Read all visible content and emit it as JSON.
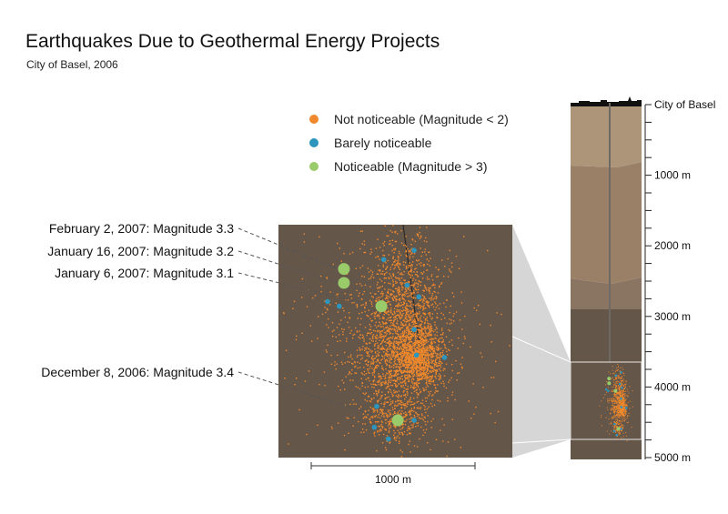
{
  "title": "Earthquakes Due to Geothermal Energy Projects",
  "subtitle": "City of Basel, 2006",
  "colors": {
    "not_noticeable": "#f0892c",
    "barely_noticeable": "#2e95bd",
    "noticeable": "#9acb6a",
    "rock_background": "#65564a"
  },
  "legend": [
    {
      "key": "not_noticeable",
      "label": "Not noticeable (Magnitude < 2)"
    },
    {
      "key": "barely_noticeable",
      "label": "Barely noticeable"
    },
    {
      "key": "noticeable",
      "label": "Noticeable (Magnitude > 3)"
    }
  ],
  "chart_data": {
    "type": "scatter",
    "title": "Earthquakes Due to Geothermal Energy Projects",
    "subtitle": "City of Basel, 2006",
    "surface_label": "City of Basel",
    "depth_axis": {
      "ticks": [
        {
          "value": 1000,
          "label": "1000 m"
        },
        {
          "value": 2000,
          "label": "2000 m"
        },
        {
          "value": 3000,
          "label": "3000 m"
        },
        {
          "value": 4000,
          "label": "4000 m"
        },
        {
          "value": 5000,
          "label": "5000 m"
        }
      ],
      "range": [
        0,
        5000
      ]
    },
    "scale_bar": {
      "label": "1000 m",
      "length_m": 1000
    },
    "zoom_window_depth_m": [
      3650,
      4800
    ],
    "noticeable_events": [
      {
        "label": "February 2, 2007: Magnitude 3.3",
        "x": 0.28,
        "y": 0.19
      },
      {
        "label": "January 16, 2007: Magnitude 3.2",
        "x": 0.28,
        "y": 0.25
      },
      {
        "label": "January 6, 2007: Magnitude 3.1",
        "x": 0.44,
        "y": 0.35
      },
      {
        "label": "December 8, 2006: Magnitude 3.4",
        "x": 0.51,
        "y": 0.84
      }
    ],
    "barely_noticeable_events": [
      {
        "x": 0.58,
        "y": 0.11
      },
      {
        "x": 0.45,
        "y": 0.15
      },
      {
        "x": 0.29,
        "y": 0.26
      },
      {
        "x": 0.21,
        "y": 0.33
      },
      {
        "x": 0.26,
        "y": 0.35
      },
      {
        "x": 0.55,
        "y": 0.26
      },
      {
        "x": 0.6,
        "y": 0.31
      },
      {
        "x": 0.58,
        "y": 0.45
      },
      {
        "x": 0.59,
        "y": 0.56
      },
      {
        "x": 0.71,
        "y": 0.57
      },
      {
        "x": 0.42,
        "y": 0.78
      },
      {
        "x": 0.58,
        "y": 0.84
      },
      {
        "x": 0.41,
        "y": 0.87
      },
      {
        "x": 0.47,
        "y": 0.92
      }
    ]
  }
}
